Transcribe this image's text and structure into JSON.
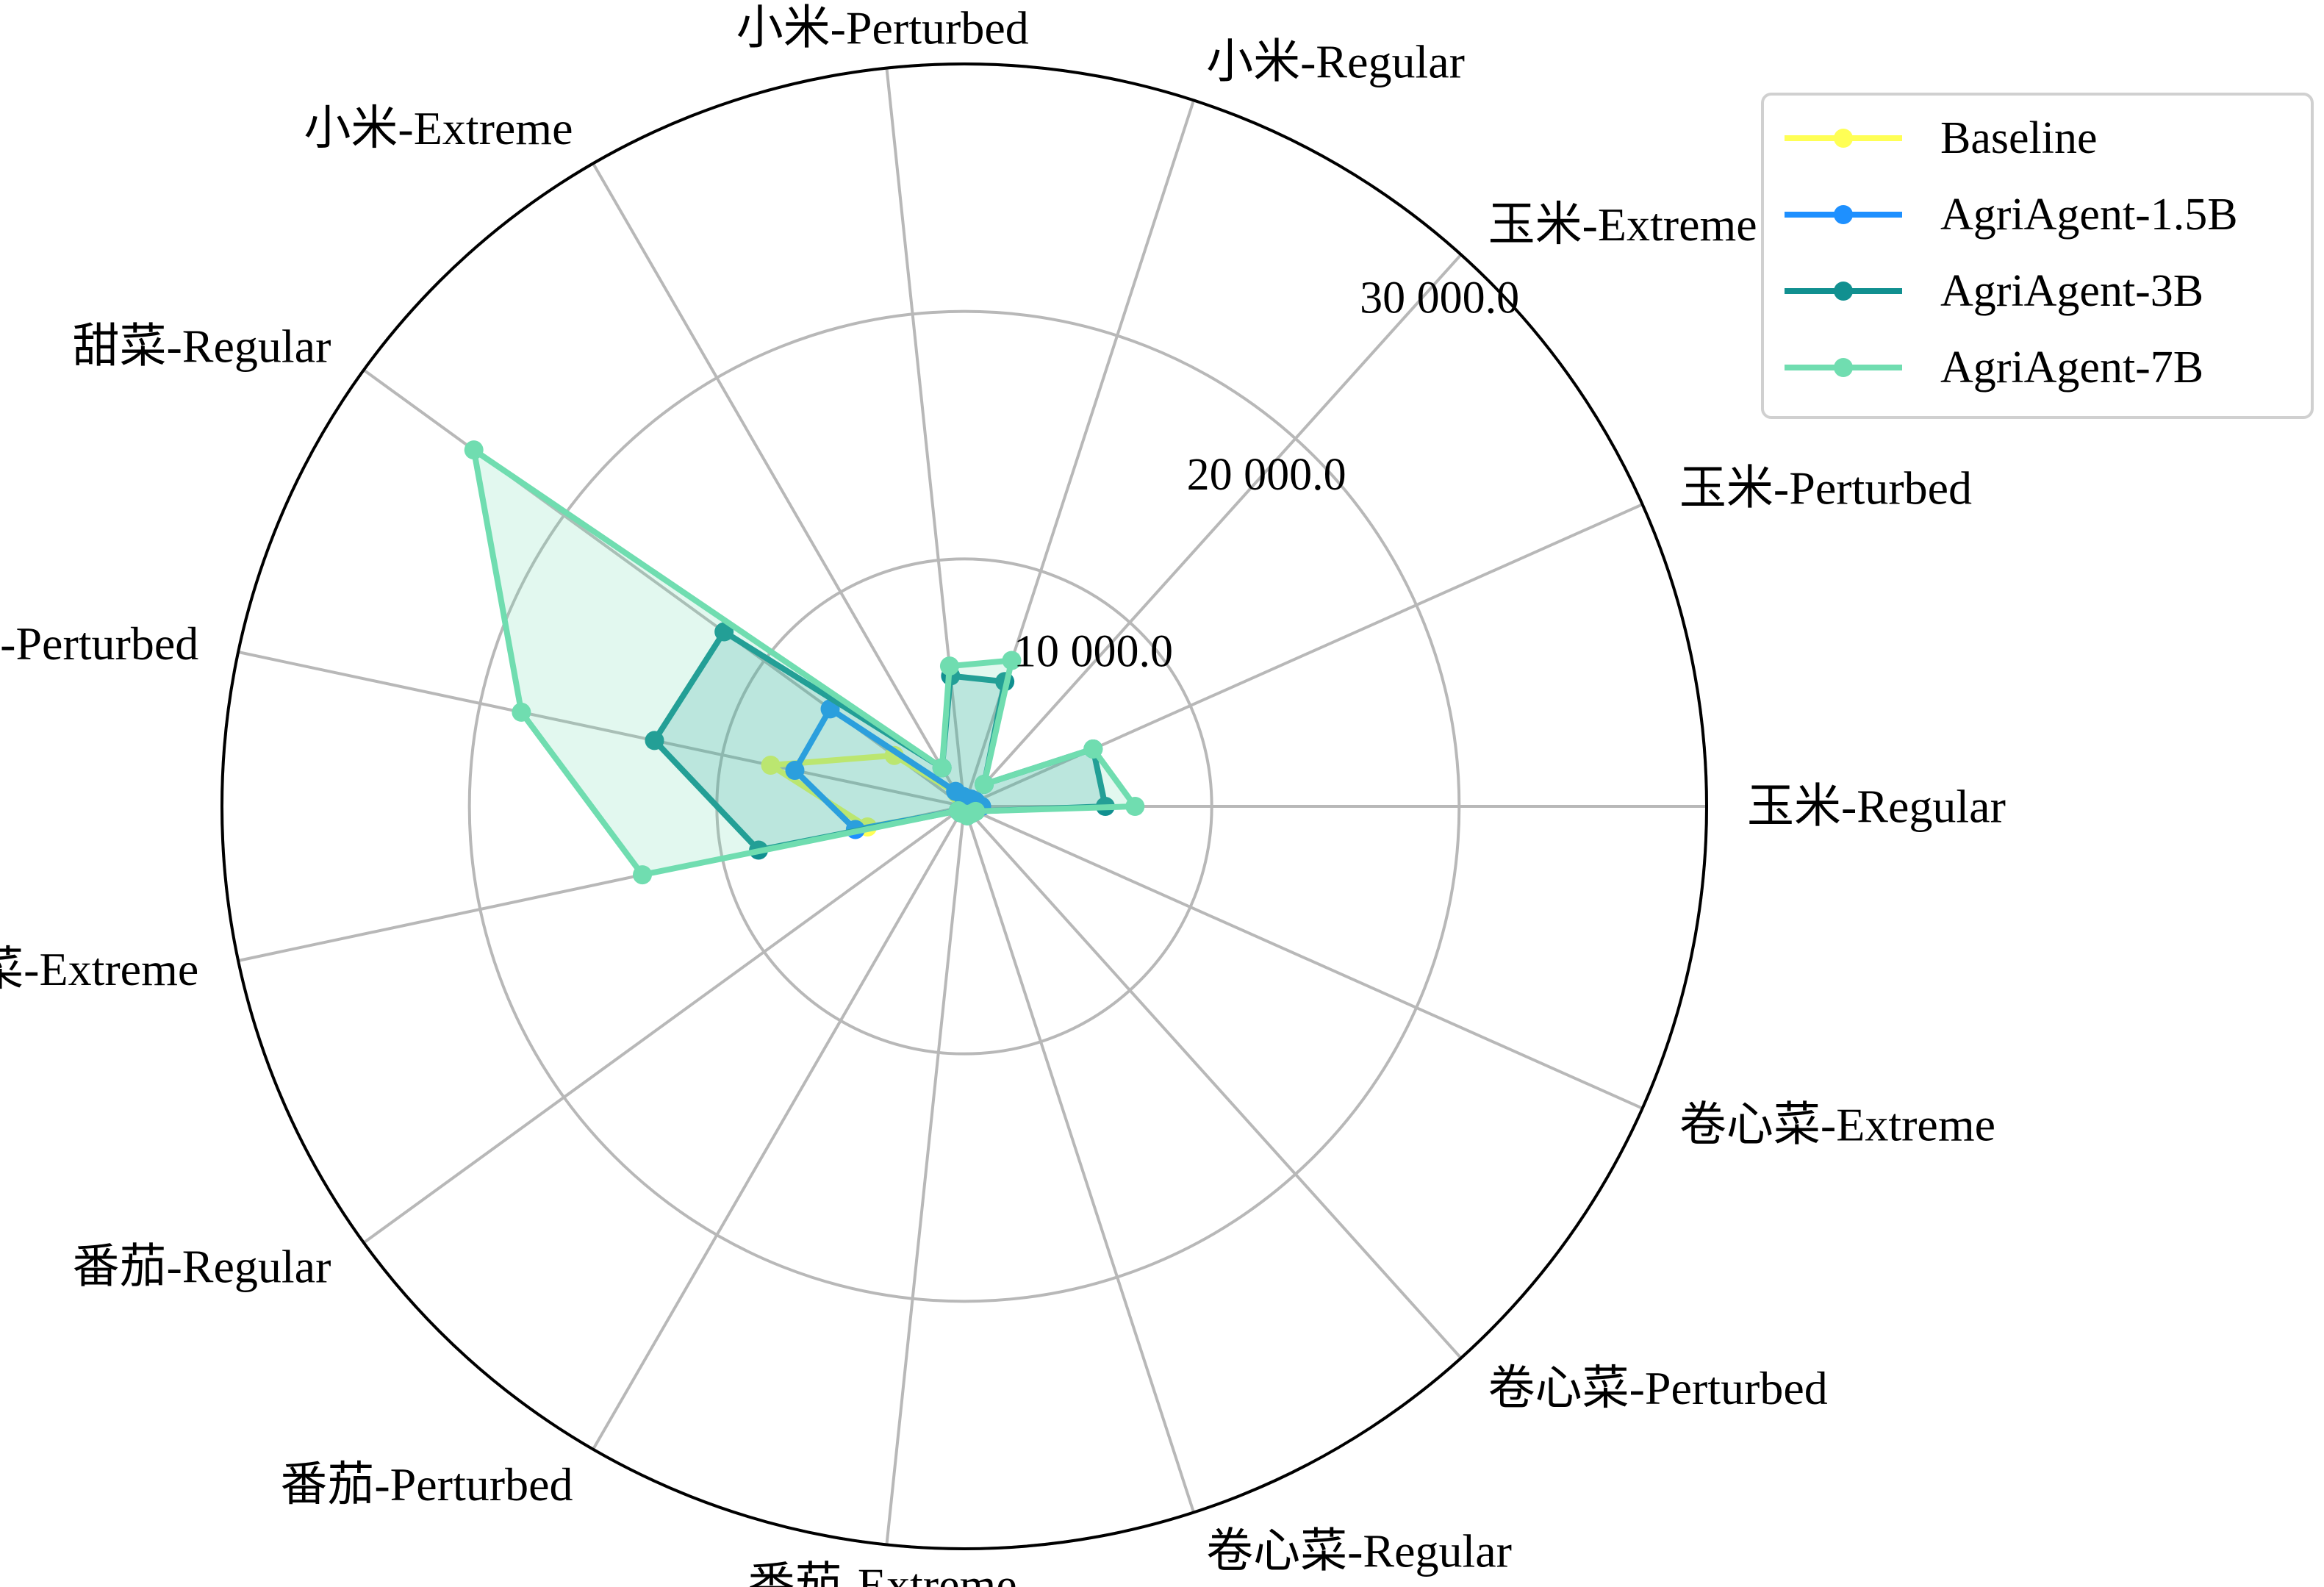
{
  "chart_data": {
    "type": "radar",
    "categories": [
      "玉米-Regular",
      "玉米-Perturbed",
      "玉米-Extreme",
      "小米-Regular",
      "小米-Perturbed",
      "小米-Extreme",
      "甜菜-Regular",
      "甜菜-Perturbed",
      "甜菜-Extreme",
      "番茄-Regular",
      "番茄-Perturbed",
      "番茄-Extreme",
      "卷心菜-Regular",
      "卷心菜-Perturbed",
      "卷心菜-Extreme"
    ],
    "radial_ticks": [
      10000,
      20000,
      30000
    ],
    "radial_tick_labels": [
      "10 000.0",
      "20 000.0",
      "30 000.0"
    ],
    "rmax": 30000,
    "grid": true,
    "legend_position": "top-right",
    "series": [
      {
        "name": "Baseline",
        "color": "#ffff55",
        "fill": false,
        "values": [
          600,
          400,
          300,
          300,
          300,
          600,
          3500,
          8000,
          4000,
          300,
          300,
          200,
          200,
          200,
          300
        ]
      },
      {
        "name": "AgriAgent-1.5B",
        "color": "#1e90ff",
        "fill": false,
        "values": [
          700,
          500,
          400,
          300,
          400,
          700,
          6700,
          7000,
          4500,
          300,
          300,
          200,
          300,
          300,
          400
        ]
      },
      {
        "name": "AgriAgent-3B",
        "color": "#119090",
        "fill": true,
        "values": [
          5700,
          5700,
          1200,
          5300,
          5300,
          1800,
          12000,
          12800,
          8500,
          300,
          300,
          300,
          400,
          400,
          500
        ]
      },
      {
        "name": "AgriAgent-7B",
        "color": "#70ddb0",
        "fill": true,
        "values": [
          6900,
          5700,
          1200,
          6200,
          5700,
          1800,
          24500,
          18300,
          13300,
          300,
          300,
          300,
          400,
          400,
          500
        ]
      }
    ]
  }
}
